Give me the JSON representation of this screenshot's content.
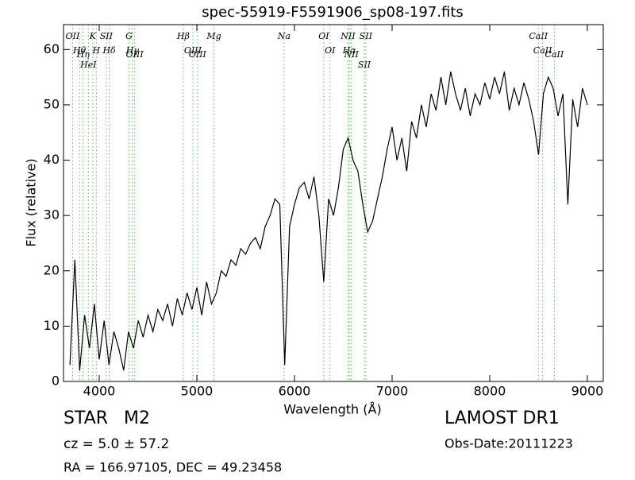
{
  "chart_data": {
    "type": "line",
    "title": "spec-55919-F5591906_sp08-197.fits",
    "x_label": "Wavelength (Å)",
    "y_label": "Flux (relative)",
    "xlim": [
      3634,
      9163
    ],
    "ylim": [
      0,
      64.5
    ],
    "xticks": [
      4000,
      5000,
      6000,
      7000,
      8000,
      9000
    ],
    "yticks": [
      0,
      10,
      20,
      30,
      40,
      50,
      60
    ],
    "line_color": "#000000",
    "marker_line_color": "#5cb85c",
    "x": [
      3700,
      3750,
      3800,
      3850,
      3900,
      3950,
      4000,
      4050,
      4100,
      4150,
      4200,
      4250,
      4300,
      4350,
      4400,
      4450,
      4500,
      4550,
      4600,
      4650,
      4700,
      4750,
      4800,
      4850,
      4900,
      4950,
      5000,
      5050,
      5100,
      5150,
      5200,
      5250,
      5300,
      5350,
      5400,
      5450,
      5500,
      5550,
      5600,
      5650,
      5700,
      5750,
      5800,
      5850,
      5900,
      5950,
      6000,
      6050,
      6100,
      6150,
      6200,
      6250,
      6300,
      6350,
      6400,
      6450,
      6500,
      6550,
      6600,
      6650,
      6700,
      6750,
      6800,
      6850,
      6900,
      6950,
      7000,
      7050,
      7100,
      7150,
      7200,
      7250,
      7300,
      7350,
      7400,
      7450,
      7500,
      7550,
      7600,
      7650,
      7700,
      7750,
      7800,
      7850,
      7900,
      7950,
      8000,
      8050,
      8100,
      8150,
      8200,
      8250,
      8300,
      8350,
      8400,
      8450,
      8500,
      8550,
      8600,
      8650,
      8700,
      8750,
      8800,
      8850,
      8900,
      8950,
      9000
    ],
    "values": [
      3,
      22,
      2,
      12,
      6,
      14,
      4,
      11,
      3,
      9,
      6,
      2,
      9,
      6,
      11,
      8,
      12,
      9,
      13,
      11,
      14,
      10,
      15,
      12,
      16,
      13,
      17,
      12,
      18,
      14,
      16,
      20,
      19,
      22,
      21,
      24,
      23,
      25,
      26,
      24,
      28,
      30,
      33,
      32,
      3,
      28,
      32,
      35,
      36,
      33,
      37,
      30,
      18,
      33,
      30,
      35,
      42,
      44,
      40,
      38,
      32,
      27,
      29,
      33,
      37,
      42,
      46,
      40,
      44,
      38,
      47,
      44,
      50,
      46,
      52,
      49,
      55,
      50,
      56,
      52,
      49,
      53,
      48,
      52,
      50,
      54,
      51,
      55,
      52,
      56,
      49,
      53,
      50,
      54,
      51,
      47,
      41,
      52,
      55,
      53,
      48,
      52,
      32,
      51,
      46,
      53,
      50
    ],
    "spectral_lines": [
      {
        "name": "OII",
        "wavelength": 3727
      },
      {
        "name": "Hθ",
        "wavelength": 3798
      },
      {
        "name": "Hη",
        "wavelength": 3835
      },
      {
        "name": "HeI",
        "wavelength": 3889
      },
      {
        "name": "K",
        "wavelength": 3934
      },
      {
        "name": "H",
        "wavelength": 3970
      },
      {
        "name": "SII",
        "wavelength": 4072
      },
      {
        "name": "Hδ",
        "wavelength": 4102
      },
      {
        "name": "G",
        "wavelength": 4305
      },
      {
        "name": "Hγ",
        "wavelength": 4340
      },
      {
        "name": "OIII",
        "wavelength": 4363
      },
      {
        "name": "Hβ",
        "wavelength": 4861
      },
      {
        "name": "OIII",
        "wavelength": 4959
      },
      {
        "name": "OIII",
        "wavelength": 5007
      },
      {
        "name": "Mg",
        "wavelength": 5175
      },
      {
        "name": "Na",
        "wavelength": 5893
      },
      {
        "name": "OI",
        "wavelength": 6300
      },
      {
        "name": "OI",
        "wavelength": 6364
      },
      {
        "name": "NII",
        "wavelength": 6548
      },
      {
        "name": "Hα",
        "wavelength": 6563
      },
      {
        "name": "NII",
        "wavelength": 6583
      },
      {
        "name": "SII",
        "wavelength": 6716
      },
      {
        "name": "SII",
        "wavelength": 6731
      },
      {
        "name": "CaII",
        "wavelength": 8498
      },
      {
        "name": "CaII",
        "wavelength": 8542
      },
      {
        "name": "CaII",
        "wavelength": 8662
      }
    ],
    "annotations": {
      "object_class": "STAR",
      "subclass": "M2",
      "redshift": "cz = 5.0 ± 57.2",
      "coordinates": "RA = 166.97105, DEC = 49.23458",
      "survey": "LAMOST DR1",
      "obs_date": "Obs-Date:20111223"
    }
  }
}
